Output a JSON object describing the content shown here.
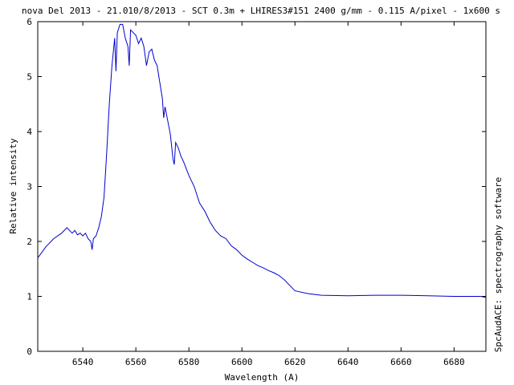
{
  "chart_data": {
    "type": "line",
    "title": "nova Del 2013 - 21.010/8/2013 - SCT 0.3m + LHIRES3#151 2400 g/mm - 0.115 A/pixel - 1x600 s",
    "xlabel": "Wavelength (A)",
    "ylabel": "Relative intensity",
    "side_label": "SpcAudACE: spectrography software",
    "xlim": [
      6523,
      6692
    ],
    "ylim": [
      0,
      6
    ],
    "xticks": [
      6540,
      6560,
      6580,
      6600,
      6620,
      6640,
      6660,
      6680
    ],
    "yticks": [
      0,
      1,
      2,
      3,
      4,
      5,
      6
    ],
    "grid": false,
    "line_color": "#0000cc",
    "series": [
      {
        "x": [
          6523,
          6526,
          6529,
          6532,
          6534,
          6535,
          6536,
          6537,
          6538,
          6539,
          6540,
          6541,
          6542,
          6543,
          6543.5,
          6544,
          6545,
          6546,
          6547,
          6548,
          6549,
          6550,
          6551,
          6552,
          6552.5,
          6553,
          6554,
          6555,
          6556,
          6557,
          6557.5,
          6558,
          6559,
          6560,
          6561,
          6562,
          6563,
          6564,
          6565,
          6566,
          6567,
          6568,
          6569,
          6570,
          6570.5,
          6571,
          6572,
          6573,
          6574,
          6574.5,
          6575,
          6576,
          6577,
          6578,
          6580,
          6582,
          6584,
          6586,
          6588,
          6590,
          6592,
          6594,
          6596,
          6598,
          6600,
          6602,
          6604,
          6606,
          6608,
          6610,
          6612,
          6614,
          6616,
          6618,
          6620,
          6625,
          6630,
          6640,
          6650,
          6660,
          6670,
          6680,
          6690,
          6692
        ],
        "y": [
          1.7,
          1.9,
          2.05,
          2.15,
          2.25,
          2.2,
          2.15,
          2.2,
          2.12,
          2.15,
          2.1,
          2.15,
          2.05,
          2.0,
          1.85,
          2.05,
          2.1,
          2.25,
          2.45,
          2.8,
          3.6,
          4.5,
          5.2,
          5.7,
          5.1,
          5.8,
          5.95,
          5.95,
          5.7,
          5.55,
          5.2,
          5.85,
          5.8,
          5.75,
          5.6,
          5.7,
          5.55,
          5.2,
          5.45,
          5.5,
          5.3,
          5.2,
          4.9,
          4.6,
          4.25,
          4.45,
          4.2,
          3.95,
          3.5,
          3.4,
          3.8,
          3.7,
          3.55,
          3.45,
          3.2,
          3.0,
          2.7,
          2.55,
          2.35,
          2.2,
          2.1,
          2.05,
          1.92,
          1.85,
          1.75,
          1.68,
          1.62,
          1.56,
          1.52,
          1.47,
          1.43,
          1.38,
          1.3,
          1.2,
          1.1,
          1.05,
          1.02,
          1.01,
          1.02,
          1.02,
          1.01,
          1.0,
          1.0,
          0.98
        ]
      }
    ]
  }
}
